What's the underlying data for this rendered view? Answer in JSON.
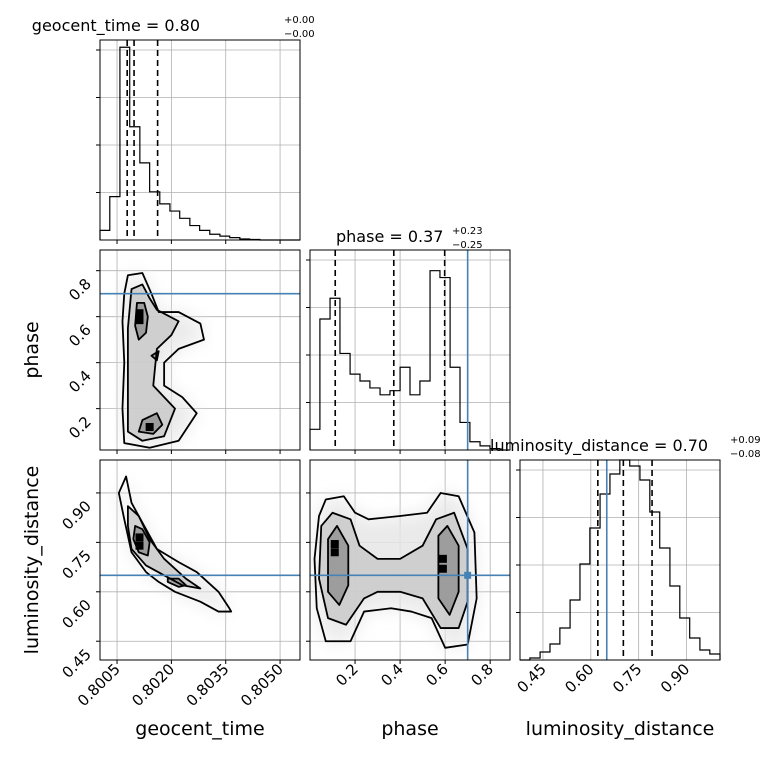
{
  "chart_data": {
    "type": "corner",
    "parameters": [
      "geocent_time",
      "phase",
      "luminosity_distance"
    ],
    "axis_labels": {
      "geocent_time": "geocent_time",
      "phase": "phase",
      "luminosity_distance": "luminosity_distance"
    },
    "xlim": {
      "geocent_time": [
        0.80003,
        0.80555
      ],
      "phase": [
        0.0,
        0.888
      ],
      "luminosity_distance": [
        0.378,
        1.005
      ]
    },
    "ylim": {
      "phase": [
        0.02,
        0.89
      ],
      "luminosity_distance": [
        0.393,
        1.0
      ]
    },
    "ticks": {
      "geocent_time": {
        "values": [
          0.8005,
          0.802,
          0.8035,
          0.805
        ],
        "labels": [
          "0.8005",
          "0.8020",
          "0.8035",
          "0.8050"
        ]
      },
      "phase": {
        "values": [
          0.2,
          0.4,
          0.6,
          0.8
        ],
        "labels": [
          "0.2",
          "0.4",
          "0.6",
          "0.8"
        ]
      },
      "luminosity_distance": {
        "values": [
          0.45,
          0.6,
          0.75,
          0.9
        ],
        "labels": [
          "0.45",
          "0.60",
          "0.75",
          "0.90"
        ]
      }
    },
    "titles": {
      "geocent_time": {
        "prefix": "geocent_time = ",
        "median": "0.80",
        "plus": "+0.00",
        "minus": "−0.00"
      },
      "phase": {
        "prefix": "phase = ",
        "median": "0.37",
        "plus": "+0.23",
        "minus": "−0.25"
      },
      "luminosity_distance": {
        "prefix": "luminosity_distance = ",
        "median": "0.70",
        "plus": "+0.09",
        "minus": "−0.08"
      }
    },
    "quantiles": {
      "geocent_time": [
        0.80078,
        0.80097,
        0.80162
      ],
      "phase": [
        0.112,
        0.372,
        0.598
      ],
      "luminosity_distance": [
        0.622,
        0.702,
        0.792
      ]
    },
    "truths": {
      "phase": 0.7,
      "luminosity_distance": 0.65
    },
    "truth_color": "#4682b4",
    "hist_max": {
      "geocent_time": 4.15,
      "phase": 1.45,
      "luminosity_distance": 1.0
    },
    "histograms": {
      "geocent_time": {
        "edges": [
          0.80003,
          0.8003,
          0.80058,
          0.80085,
          0.80113,
          0.8014,
          0.80168,
          0.80196,
          0.80223,
          0.80251,
          0.80278,
          0.80306,
          0.80334,
          0.80361,
          0.80389,
          0.80416,
          0.80444,
          0.80472,
          0.80499,
          0.80527,
          0.80555
        ],
        "counts": [
          0.2,
          0.9,
          4.0,
          2.35,
          1.6,
          1.0,
          0.75,
          0.6,
          0.45,
          0.3,
          0.2,
          0.12,
          0.08,
          0.05,
          0.02,
          0.01,
          0,
          0,
          0,
          0
        ]
      },
      "phase": {
        "edges": [
          0.0,
          0.044,
          0.089,
          0.133,
          0.178,
          0.222,
          0.266,
          0.311,
          0.355,
          0.4,
          0.444,
          0.488,
          0.533,
          0.577,
          0.622,
          0.666,
          0.71,
          0.755,
          0.799,
          0.844,
          0.888
        ],
        "counts": [
          0.15,
          0.95,
          1.1,
          0.7,
          0.55,
          0.5,
          0.45,
          0.4,
          0.43,
          0.6,
          0.4,
          0.5,
          1.3,
          1.25,
          0.6,
          0.2,
          0.06,
          0.03,
          0.01,
          0.0
        ]
      },
      "luminosity_distance": {
        "edges": [
          0.378,
          0.409,
          0.441,
          0.472,
          0.503,
          0.535,
          0.566,
          0.597,
          0.629,
          0.66,
          0.691,
          0.722,
          0.754,
          0.785,
          0.816,
          0.848,
          0.879,
          0.91,
          0.942,
          0.973,
          1.005
        ],
        "counts": [
          0,
          0.01,
          0.04,
          0.08,
          0.16,
          0.3,
          0.48,
          0.66,
          0.83,
          0.93,
          1.0,
          0.97,
          0.9,
          0.74,
          0.56,
          0.37,
          0.21,
          0.11,
          0.05,
          0.03
        ]
      }
    },
    "contours_2d": {
      "phase_vs_geocent_time": {
        "x": "geocent_time",
        "y": "phase",
        "levels": [
          [
            [
              0.8008,
              0.78
            ],
            [
              0.8012,
              0.79
            ],
            [
              0.80145,
              0.7
            ],
            [
              0.80165,
              0.62
            ],
            [
              0.8022,
              0.62
            ],
            [
              0.8028,
              0.57
            ],
            [
              0.8029,
              0.5
            ],
            [
              0.8022,
              0.46
            ],
            [
              0.8018,
              0.4
            ],
            [
              0.8018,
              0.3
            ],
            [
              0.8023,
              0.25
            ],
            [
              0.8027,
              0.18
            ],
            [
              0.8022,
              0.06
            ],
            [
              0.8014,
              0.03
            ],
            [
              0.8007,
              0.05
            ],
            [
              0.80065,
              0.2
            ],
            [
              0.8007,
              0.4
            ],
            [
              0.80065,
              0.58
            ],
            [
              0.8007,
              0.7
            ],
            [
              0.8008,
              0.78
            ]
          ],
          [
            [
              0.8009,
              0.72
            ],
            [
              0.8012,
              0.74
            ],
            [
              0.8014,
              0.68
            ],
            [
              0.8016,
              0.63
            ],
            [
              0.8022,
              0.58
            ],
            [
              0.802,
              0.52
            ],
            [
              0.8016,
              0.46
            ],
            [
              0.8015,
              0.3
            ],
            [
              0.8021,
              0.2
            ],
            [
              0.8018,
              0.08
            ],
            [
              0.8012,
              0.06
            ],
            [
              0.8008,
              0.1
            ],
            [
              0.8008,
              0.35
            ],
            [
              0.8008,
              0.55
            ],
            [
              0.8009,
              0.72
            ]
          ],
          [
            [
              0.80105,
              0.66
            ],
            [
              0.80125,
              0.66
            ],
            [
              0.80135,
              0.6
            ],
            [
              0.8013,
              0.53
            ],
            [
              0.8011,
              0.5
            ],
            [
              0.801,
              0.56
            ],
            [
              0.80105,
              0.66
            ]
          ],
          [
            [
              0.8012,
              0.15
            ],
            [
              0.8016,
              0.18
            ],
            [
              0.80175,
              0.13
            ],
            [
              0.8015,
              0.09
            ],
            [
              0.8011,
              0.1
            ],
            [
              0.8012,
              0.15
            ]
          ],
          [
            [
              0.80145,
              0.43
            ],
            [
              0.80165,
              0.45
            ],
            [
              0.8016,
              0.41
            ],
            [
              0.80145,
              0.43
            ]
          ]
        ],
        "peak_points": [
          [
            0.80112,
            0.615
          ],
          [
            0.80112,
            0.585
          ],
          [
            0.8014,
            0.12
          ]
        ]
      },
      "luminosity_distance_vs_geocent_time": {
        "x": "geocent_time",
        "y": "luminosity_distance",
        "levels": [
          [
            [
              0.80055,
              0.9
            ],
            [
              0.80075,
              0.95
            ],
            [
              0.8009,
              0.87
            ],
            [
              0.8011,
              0.83
            ],
            [
              0.8016,
              0.73
            ],
            [
              0.8022,
              0.69
            ],
            [
              0.8027,
              0.66
            ],
            [
              0.8033,
              0.6
            ],
            [
              0.8036,
              0.55
            ],
            [
              0.80365,
              0.54
            ],
            [
              0.8033,
              0.54
            ],
            [
              0.8028,
              0.57
            ],
            [
              0.8021,
              0.6
            ],
            [
              0.80165,
              0.63
            ],
            [
              0.8013,
              0.66
            ],
            [
              0.8009,
              0.72
            ],
            [
              0.8007,
              0.82
            ],
            [
              0.80055,
              0.9
            ]
          ],
          [
            [
              0.8008,
              0.86
            ],
            [
              0.8011,
              0.83
            ],
            [
              0.8014,
              0.76
            ],
            [
              0.8018,
              0.7
            ],
            [
              0.8024,
              0.64
            ],
            [
              0.8028,
              0.61
            ],
            [
              0.8023,
              0.62
            ],
            [
              0.8018,
              0.65
            ],
            [
              0.8013,
              0.68
            ],
            [
              0.8009,
              0.73
            ],
            [
              0.8008,
              0.8
            ],
            [
              0.8008,
              0.86
            ]
          ],
          [
            [
              0.801,
              0.8
            ],
            [
              0.8012,
              0.79
            ],
            [
              0.8014,
              0.75
            ],
            [
              0.80135,
              0.71
            ],
            [
              0.8011,
              0.72
            ],
            [
              0.80095,
              0.76
            ],
            [
              0.801,
              0.8
            ]
          ],
          [
            [
              0.8019,
              0.64
            ],
            [
              0.8022,
              0.64
            ],
            [
              0.8024,
              0.62
            ],
            [
              0.8022,
              0.615
            ],
            [
              0.8019,
              0.63
            ],
            [
              0.8019,
              0.64
            ]
          ]
        ],
        "peak_points": [
          [
            0.80112,
            0.765
          ],
          [
            0.80112,
            0.74
          ]
        ]
      },
      "luminosity_distance_vs_phase": {
        "x": "phase",
        "y": "luminosity_distance",
        "levels": [
          [
            [
              0.04,
              0.83
            ],
            [
              0.07,
              0.88
            ],
            [
              0.15,
              0.89
            ],
            [
              0.2,
              0.84
            ],
            [
              0.26,
              0.82
            ],
            [
              0.4,
              0.83
            ],
            [
              0.52,
              0.84
            ],
            [
              0.58,
              0.9
            ],
            [
              0.66,
              0.89
            ],
            [
              0.73,
              0.78
            ],
            [
              0.74,
              0.58
            ],
            [
              0.7,
              0.44
            ],
            [
              0.6,
              0.43
            ],
            [
              0.54,
              0.52
            ],
            [
              0.45,
              0.54
            ],
            [
              0.36,
              0.55
            ],
            [
              0.24,
              0.54
            ],
            [
              0.18,
              0.45
            ],
            [
              0.07,
              0.45
            ],
            [
              0.03,
              0.55
            ],
            [
              0.02,
              0.7
            ],
            [
              0.04,
              0.83
            ]
          ],
          [
            [
              0.05,
              0.8
            ],
            [
              0.1,
              0.84
            ],
            [
              0.18,
              0.82
            ],
            [
              0.22,
              0.74
            ],
            [
              0.3,
              0.7
            ],
            [
              0.4,
              0.7
            ],
            [
              0.5,
              0.74
            ],
            [
              0.56,
              0.82
            ],
            [
              0.64,
              0.84
            ],
            [
              0.7,
              0.73
            ],
            [
              0.7,
              0.57
            ],
            [
              0.66,
              0.49
            ],
            [
              0.58,
              0.49
            ],
            [
              0.5,
              0.58
            ],
            [
              0.4,
              0.6
            ],
            [
              0.3,
              0.6
            ],
            [
              0.24,
              0.58
            ],
            [
              0.16,
              0.5
            ],
            [
              0.08,
              0.52
            ],
            [
              0.04,
              0.64
            ],
            [
              0.05,
              0.8
            ]
          ],
          [
            [
              0.08,
              0.76
            ],
            [
              0.12,
              0.8
            ],
            [
              0.17,
              0.74
            ],
            [
              0.17,
              0.62
            ],
            [
              0.13,
              0.56
            ],
            [
              0.08,
              0.6
            ],
            [
              0.08,
              0.76
            ]
          ],
          [
            [
              0.57,
              0.77
            ],
            [
              0.61,
              0.8
            ],
            [
              0.66,
              0.74
            ],
            [
              0.66,
              0.6
            ],
            [
              0.62,
              0.53
            ],
            [
              0.57,
              0.58
            ],
            [
              0.57,
              0.77
            ]
          ]
        ],
        "peak_points": [
          [
            0.11,
            0.745
          ],
          [
            0.11,
            0.72
          ],
          [
            0.59,
            0.67
          ],
          [
            0.59,
            0.7
          ]
        ]
      }
    }
  }
}
